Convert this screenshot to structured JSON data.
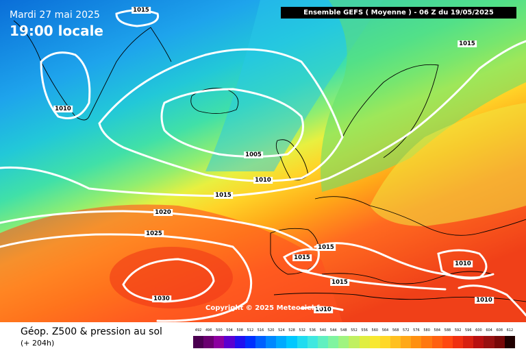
{
  "map": {
    "date": "Mardi 27 mai 2025",
    "time": "19:00 locale",
    "header": "Ensemble GEFS  ( Moyenne )  -  06 Z du 19/05/2025",
    "copyright": "Copyright © 2025 Meteociel.fr",
    "footer_title": "Géop. Z500 & pression au sol",
    "footer_sub": "(+ 204h)",
    "isobar_labels": [
      "1015",
      "1015",
      "1010",
      "1005",
      "1010",
      "1015",
      "1020",
      "1025",
      "1030",
      "1015",
      "1015",
      "1015",
      "1010",
      "1010",
      "1010"
    ],
    "legend_values": [
      "492",
      "496",
      "500",
      "504",
      "508",
      "512",
      "516",
      "520",
      "524",
      "528",
      "532",
      "536",
      "540",
      "544",
      "548",
      "552",
      "556",
      "560",
      "564",
      "568",
      "572",
      "576",
      "580",
      "584",
      "588",
      "592",
      "596",
      "600",
      "604",
      "608",
      "612"
    ],
    "legend_colors": [
      "#4b0050",
      "#6a0070",
      "#8c00a0",
      "#5a00d0",
      "#2010f0",
      "#0030ff",
      "#0060ff",
      "#0088ff",
      "#00aaff",
      "#00c8ff",
      "#20dcf0",
      "#40e8e0",
      "#60f0c0",
      "#80f4a0",
      "#a0f480",
      "#c0f060",
      "#e0ee40",
      "#f8e830",
      "#ffd828",
      "#ffc020",
      "#ffa818",
      "#ff9010",
      "#ff7810",
      "#ff6010",
      "#ff4810",
      "#f03010",
      "#d82010",
      "#b81010",
      "#981010",
      "#780808",
      "#200000"
    ],
    "colors": {
      "z500_low": "#1a8fe0",
      "z500_mid": "#58d890",
      "z500_high": "#ff5a20",
      "isobar": "#ffffff",
      "coastline": "#000000"
    }
  }
}
